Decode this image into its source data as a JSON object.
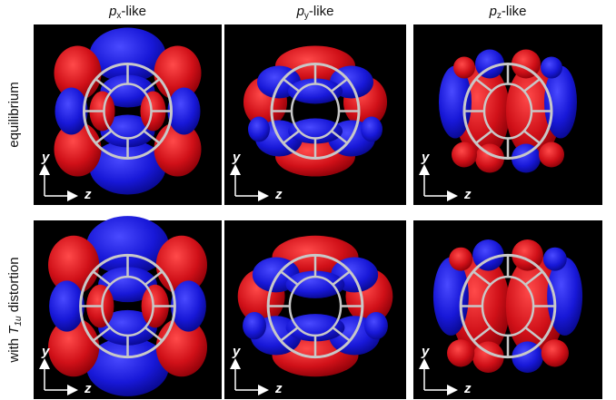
{
  "columns": [
    {
      "base": "p",
      "sub": "x",
      "suffix": "-like"
    },
    {
      "base": "p",
      "sub": "y",
      "suffix": "-like"
    },
    {
      "base": "p",
      "sub": "z",
      "suffix": "-like"
    }
  ],
  "rows": [
    {
      "parts": [
        "equilibrium"
      ]
    },
    {
      "parts": [
        "with ",
        "T",
        "1u",
        " distortion"
      ]
    }
  ],
  "panels": [
    [
      {
        "vertical_axis": "y",
        "horizontal_axis": "z"
      },
      {
        "vertical_axis": "y",
        "horizontal_axis": "z"
      },
      {
        "vertical_axis": "y",
        "horizontal_axis": "z"
      }
    ],
    [
      {
        "vertical_axis": "y",
        "horizontal_axis": "z"
      },
      {
        "vertical_axis": "y",
        "horizontal_axis": "z"
      },
      {
        "vertical_axis": "y",
        "horizontal_axis": "z"
      }
    ]
  ]
}
